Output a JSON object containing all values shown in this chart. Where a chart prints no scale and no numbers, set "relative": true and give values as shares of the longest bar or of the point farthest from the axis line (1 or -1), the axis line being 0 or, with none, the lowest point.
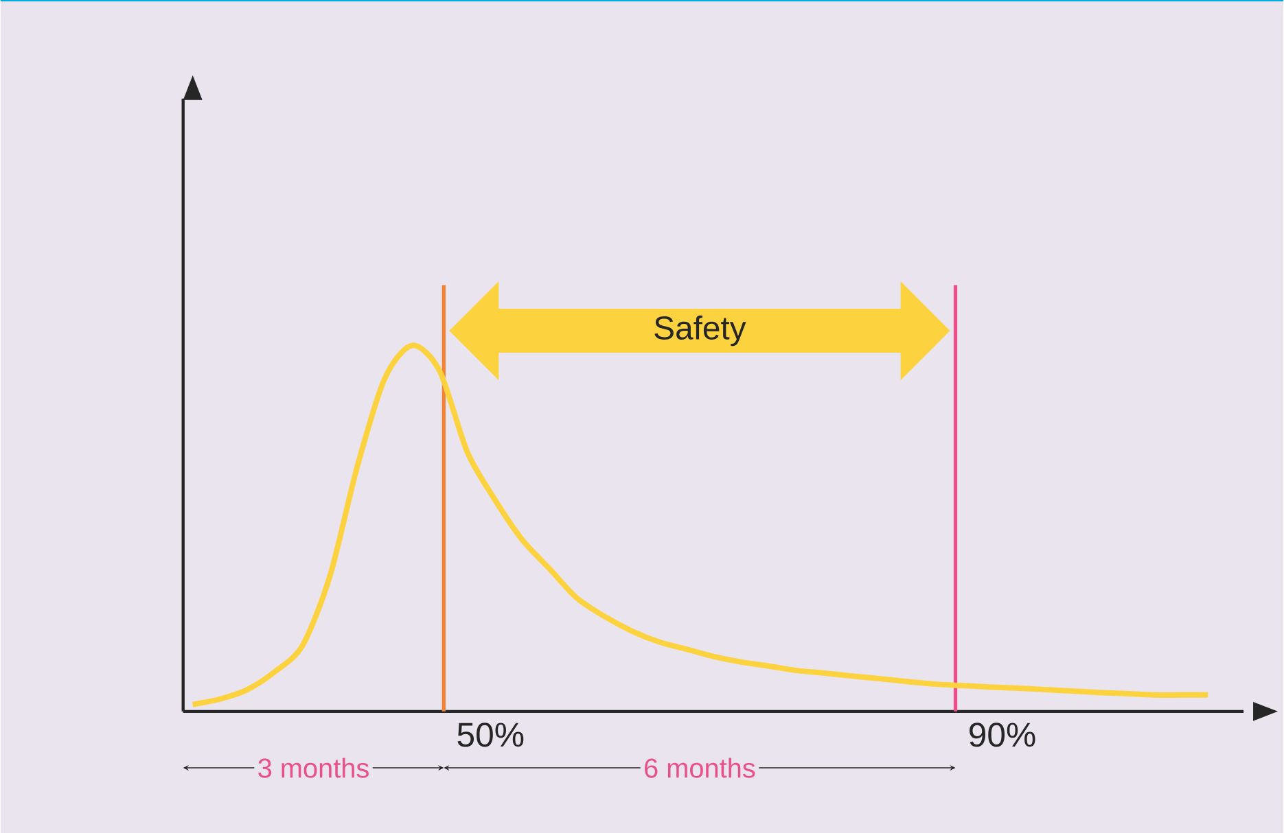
{
  "chart_data": {
    "type": "line",
    "relative": true,
    "categories": [
      null,
      null,
      null,
      null,
      null,
      null,
      null,
      null,
      null,
      null,
      null,
      null,
      null,
      null,
      null,
      null,
      null,
      null,
      null,
      null,
      null,
      null,
      null,
      null,
      null,
      null,
      null,
      null,
      null,
      null,
      null,
      null,
      null,
      null,
      null,
      null,
      null,
      null
    ],
    "series": [
      {
        "color": "#fdd23f",
        "values": [
          0.019,
          0.034,
          0.06,
          0.109,
          0.18,
          0.37,
          0.67,
          0.91,
          1.0,
          0.93,
          0.71,
          0.58,
          0.47,
          0.39,
          0.31,
          0.26,
          0.22,
          0.19,
          0.17,
          0.15,
          0.135,
          0.124,
          0.112,
          0.105,
          0.097,
          0.09,
          0.082,
          0.075,
          0.071,
          0.067,
          0.064,
          0.06,
          0.056,
          0.052,
          0.049,
          0.045,
          0.045,
          0.045
        ]
      }
    ],
    "annotations": [
      "Safety",
      "3 months",
      "6 months",
      "50%",
      "90%"
    ],
    "marker": "none",
    "line_style": "solid"
  }
}
